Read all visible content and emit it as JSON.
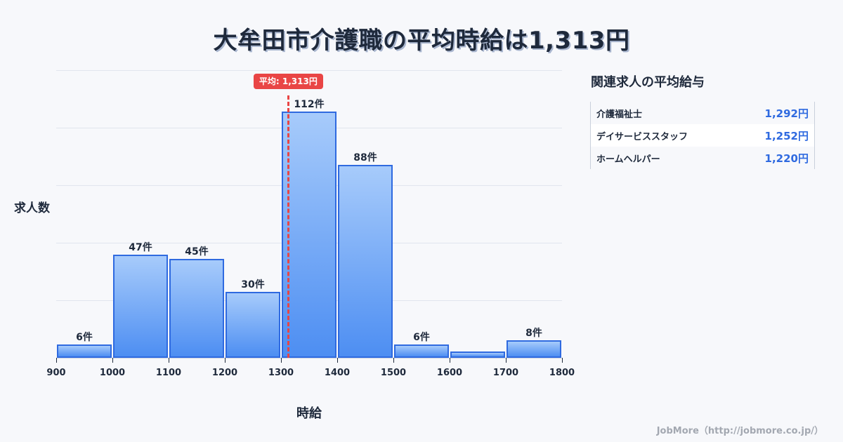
{
  "title": "大牟田市介護職の平均時給は1,313円",
  "chart_data": {
    "type": "bar",
    "title": "大牟田市介護職の平均時給は1,313円",
    "xlabel": "時給",
    "ylabel": "求人数",
    "categories": [
      "900-1000",
      "1000-1100",
      "1100-1200",
      "1200-1300",
      "1300-1400",
      "1400-1500",
      "1500-1600",
      "1600-1700",
      "1700-1800"
    ],
    "bin_edges": [
      900,
      1000,
      1100,
      1200,
      1300,
      1400,
      1500,
      1600,
      1700,
      1800
    ],
    "values": [
      6,
      47,
      45,
      30,
      112,
      88,
      6,
      3,
      8
    ],
    "value_labels": [
      "6件",
      "47件",
      "45件",
      "30件",
      "112件",
      "88件",
      "6件",
      "",
      "8件"
    ],
    "x_tick_labels": [
      "900",
      "1000",
      "1100",
      "1200",
      "1300",
      "1400",
      "1500",
      "1600",
      "1700",
      "1800"
    ],
    "xlim": [
      900,
      1800
    ],
    "ylim": [
      0,
      131
    ],
    "grid": true,
    "mean": {
      "value": 1313,
      "label": "平均: 1,313円",
      "color": "#e94545"
    },
    "bar_color": "#4d8ef2",
    "bar_border_color": "#2f6ae0"
  },
  "sidebar": {
    "title": "関連求人の平均給与",
    "rows": [
      {
        "name": "介護福祉士",
        "value": "1,292円"
      },
      {
        "name": "デイサービススタッフ",
        "value": "1,252円"
      },
      {
        "name": "ホームヘルパー",
        "value": "1,220円"
      }
    ]
  },
  "footer": "JobMore（http://jobmore.co.jp/）"
}
